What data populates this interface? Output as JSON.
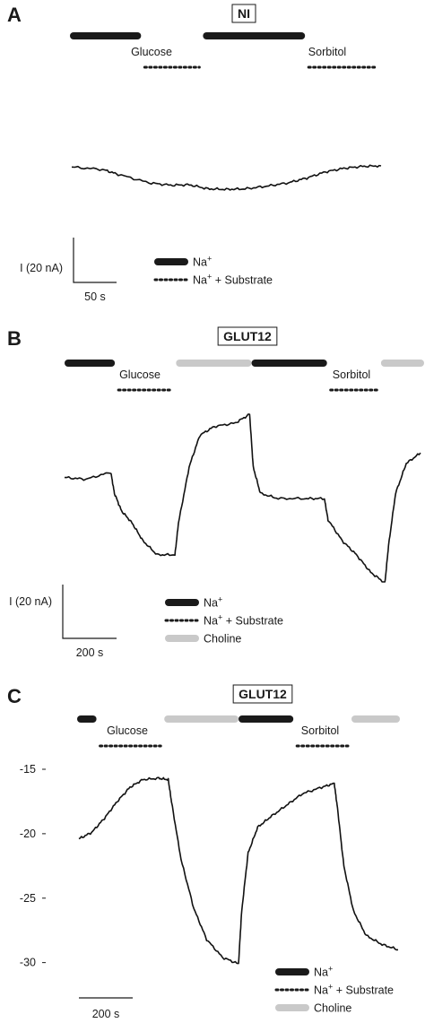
{
  "colors": {
    "na": "#1a1a1a",
    "choline": "#c9c9c9",
    "trace": "#111111",
    "dots": "#1a1a1a"
  },
  "chart_data": [
    {
      "panel": "A",
      "title": "NI",
      "type": "line",
      "stimulus_labels": [
        "Glucose",
        "Sorbitol"
      ],
      "scale_bar": {
        "y_label": "I (20 nA)",
        "x_label": "50 s"
      },
      "legend": [
        {
          "key": "na",
          "label": "Na",
          "sup": "+",
          "rest": ""
        },
        {
          "key": "dots",
          "label": "Na",
          "sup": "+",
          "rest": " + Substrate"
        }
      ],
      "protocol": [
        {
          "type": "na",
          "start": 0,
          "end": 0.23
        },
        {
          "type": "dots",
          "start": 0.23,
          "end": 0.43
        },
        {
          "type": "na",
          "start": 0.43,
          "end": 0.76
        },
        {
          "type": "dots",
          "start": 0.76,
          "end": 1.0
        }
      ],
      "series": [
        {
          "x": [
            0,
            0.1,
            0.15,
            0.25,
            0.32,
            0.38,
            0.44,
            0.5,
            0.56,
            0.63,
            0.7,
            0.76,
            0.82,
            0.88,
            0.94,
            1.0
          ],
          "y": [
            0.05,
            0.15,
            0.35,
            0.7,
            0.8,
            0.78,
            0.95,
            0.97,
            0.95,
            0.84,
            0.7,
            0.5,
            0.25,
            0.1,
            0.02,
            0
          ]
        }
      ]
    },
    {
      "panel": "B",
      "title": "GLUT12",
      "type": "line",
      "stimulus_labels": [
        "Glucose",
        "Sorbitol"
      ],
      "scale_bar": {
        "y_label": "I (20 nA)",
        "x_label": "200 s"
      },
      "legend": [
        {
          "key": "na",
          "label": "Na",
          "sup": "+",
          "rest": ""
        },
        {
          "key": "dots",
          "label": "Na",
          "sup": "+",
          "rest": " +  Substrate"
        },
        {
          "key": "choline",
          "label": "Choline",
          "sup": "",
          "rest": ""
        }
      ],
      "protocol": [
        {
          "type": "na",
          "start": 0,
          "end": 0.14
        },
        {
          "type": "dots",
          "start": 0.14,
          "end": 0.31
        },
        {
          "type": "choline",
          "start": 0.31,
          "end": 0.52
        },
        {
          "type": "na",
          "start": 0.52,
          "end": 0.73
        },
        {
          "type": "dots",
          "start": 0.73,
          "end": 0.88
        },
        {
          "type": "choline",
          "start": 0.88,
          "end": 1.0
        }
      ],
      "series": [
        {
          "x": [
            0,
            0.06,
            0.13,
            0.14,
            0.16,
            0.19,
            0.22,
            0.26,
            0.31,
            0.32,
            0.35,
            0.38,
            0.42,
            0.48,
            0.52,
            0.53,
            0.55,
            0.6,
            0.68,
            0.73,
            0.74,
            0.78,
            0.82,
            0.86,
            0.9,
            0.91,
            0.93,
            0.96,
            1.0
          ],
          "y": [
            0.36,
            0.37,
            0.33,
            0.45,
            0.55,
            0.62,
            0.72,
            0.8,
            0.8,
            0.62,
            0.3,
            0.12,
            0.07,
            0.05,
            0.0,
            0.3,
            0.45,
            0.48,
            0.48,
            0.48,
            0.6,
            0.72,
            0.8,
            0.9,
            0.96,
            0.75,
            0.45,
            0.28,
            0.22
          ]
        }
      ]
    },
    {
      "panel": "C",
      "title": "GLUT12",
      "type": "line",
      "stimulus_labels": [
        "Glucose",
        "Sorbitol"
      ],
      "scale_bar": {
        "x_label": "200 s"
      },
      "y_ticks": [
        "-15",
        "-20",
        "-25",
        "-30"
      ],
      "ylim": [
        -31,
        -15
      ],
      "legend": [
        {
          "key": "na",
          "label": "Na",
          "sup": "+",
          "rest": ""
        },
        {
          "key": "dots",
          "label": "Na",
          "sup": "+",
          "rest": " +  Substrate"
        },
        {
          "key": "choline",
          "label": "Choline",
          "sup": "",
          "rest": ""
        }
      ],
      "protocol": [
        {
          "type": "na",
          "start": 0,
          "end": 0.06
        },
        {
          "type": "dots",
          "start": 0.06,
          "end": 0.27
        },
        {
          "type": "choline",
          "start": 0.27,
          "end": 0.5
        },
        {
          "type": "na",
          "start": 0.5,
          "end": 0.67
        },
        {
          "type": "dots",
          "start": 0.67,
          "end": 0.85
        },
        {
          "type": "choline",
          "start": 0.85,
          "end": 1.0
        }
      ],
      "series": [
        {
          "x": [
            0,
            0.04,
            0.08,
            0.12,
            0.16,
            0.2,
            0.25,
            0.28,
            0.29,
            0.32,
            0.36,
            0.4,
            0.45,
            0.5,
            0.51,
            0.53,
            0.56,
            0.6,
            0.65,
            0.7,
            0.76,
            0.8,
            0.81,
            0.83,
            0.86,
            0.9,
            0.95,
            1.0
          ],
          "y": [
            -20.4,
            -19.9,
            -18.8,
            -17.5,
            -16.4,
            -15.8,
            -15.7,
            -15.8,
            -17.5,
            -22.0,
            -25.8,
            -28.2,
            -29.6,
            -30.1,
            -26.0,
            -21.5,
            -19.5,
            -18.7,
            -17.8,
            -16.9,
            -16.4,
            -16.1,
            -18.0,
            -22.5,
            -26.0,
            -27.9,
            -28.6,
            -29.0
          ]
        }
      ]
    }
  ]
}
